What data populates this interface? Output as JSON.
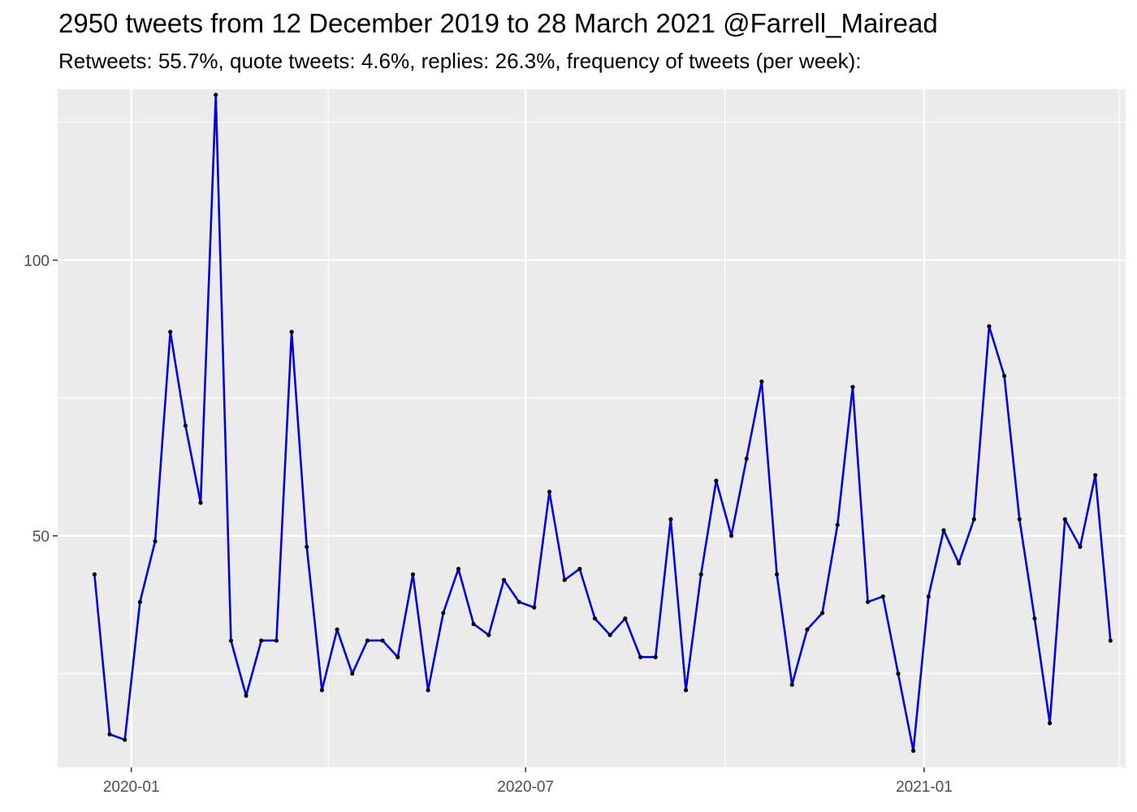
{
  "title": "2950 tweets from 12 December 2019 to 28 March 2021 @Farrell_Mairead",
  "subtitle": "Retweets: 55.7%, quote tweets: 4.6%, replies: 26.3%, frequency of tweets (per week):",
  "colors": {
    "panel": "#ebebeb",
    "grid": "#ffffff",
    "line": "#0000dd",
    "point": "#000000",
    "tick_text": "#4d4d4d"
  },
  "chart_data": {
    "type": "line",
    "title": "2950 tweets from 12 December 2019 to 28 March 2021 @Farrell_Mairead",
    "subtitle": "Retweets: 55.7%, quote tweets: 4.6%, replies: 26.3%, frequency of tweets (per week):",
    "xlabel": "",
    "ylabel": "",
    "x_start": "2019-12-15",
    "x_step_days": 7,
    "xlim": [
      "2019-11-28",
      "2021-04-04"
    ],
    "ylim": [
      8,
      131
    ],
    "x_ticks": [
      {
        "date": "2020-01-01",
        "label": "2020-01"
      },
      {
        "date": "2020-07-01",
        "label": "2020-07"
      },
      {
        "date": "2021-01-01",
        "label": "2021-01"
      }
    ],
    "x_minor_ticks": [
      "2020-04-01",
      "2020-10-01",
      "2021-04-01"
    ],
    "y_ticks": [
      50,
      100
    ],
    "y_minor_ticks": [
      25,
      75,
      125
    ],
    "grid": true,
    "values": [
      43,
      14,
      13,
      38,
      49,
      87,
      70,
      56,
      130,
      31,
      21,
      31,
      31,
      87,
      48,
      22,
      33,
      25,
      31,
      31,
      28,
      43,
      22,
      36,
      44,
      34,
      32,
      42,
      38,
      37,
      58,
      42,
      44,
      35,
      32,
      35,
      28,
      28,
      53,
      22,
      43,
      60,
      50,
      64,
      78,
      43,
      23,
      33,
      36,
      52,
      77,
      38,
      39,
      25,
      11,
      39,
      51,
      45,
      53,
      88,
      79,
      53,
      35,
      16,
      53,
      48,
      61,
      31
    ]
  }
}
